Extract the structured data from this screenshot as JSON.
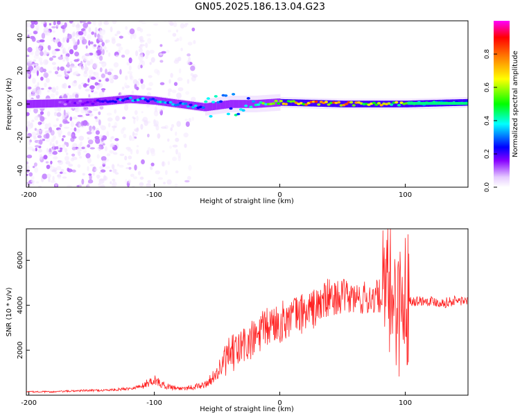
{
  "title": "GN05.2025.186.13.04.G23",
  "chart_data": [
    {
      "type": "heatmap",
      "xlabel": "Height of straight line (km)",
      "ylabel": "Frequency (Hz)",
      "xlim": [
        -202,
        150
      ],
      "ylim": [
        -50,
        50
      ],
      "xticks": [
        -200,
        -100,
        0,
        100
      ],
      "yticks": [
        -40,
        -20,
        0,
        20,
        40
      ],
      "colorbar": {
        "label": "Normalized spectral amplitude",
        "range": [
          0,
          1
        ],
        "ticks": [
          0.0,
          0.2,
          0.4,
          0.6,
          0.8
        ],
        "colormap": [
          "#ffffff",
          "#e6ccff",
          "#8800ff",
          "#0000ff",
          "#00ffff",
          "#00ff00",
          "#ffff00",
          "#ff8000",
          "#ff0000",
          "#ff00ff"
        ]
      },
      "ridge": [
        {
          "x": -200,
          "y": 0,
          "amp": 0.15
        },
        {
          "x": -150,
          "y": 1,
          "amp": 0.25
        },
        {
          "x": -120,
          "y": 3,
          "amp": 0.45
        },
        {
          "x": -100,
          "y": 2,
          "amp": 0.45
        },
        {
          "x": -80,
          "y": 0,
          "amp": 0.4
        },
        {
          "x": -60,
          "y": -2,
          "amp": 0.45
        },
        {
          "x": -40,
          "y": 0,
          "amp": 0.45
        },
        {
          "x": -20,
          "y": 0,
          "amp": 0.5
        },
        {
          "x": 0,
          "y": 1,
          "amp": 0.75
        },
        {
          "x": 50,
          "y": 0,
          "amp": 0.8
        },
        {
          "x": 100,
          "y": 0,
          "amp": 0.6
        },
        {
          "x": 150,
          "y": 1,
          "amp": 0.4
        }
      ]
    },
    {
      "type": "line",
      "xlabel": "Height of straight line (km)",
      "ylabel": "SNR (10 * v/v)",
      "xlim": [
        -202,
        150
      ],
      "ylim": [
        0,
        7400
      ],
      "xticks": [
        -200,
        -100,
        0,
        100
      ],
      "yticks": [
        2000,
        4000,
        6000
      ],
      "color": "#ff2020",
      "series": [
        {
          "x": [
            -200,
            -180,
            -160,
            -140,
            -130,
            -120,
            -110,
            -100,
            -95,
            -90,
            -80,
            -70,
            -60,
            -55,
            -50,
            -45,
            -40,
            -35,
            -30,
            -25,
            -20,
            -15,
            -10,
            -5,
            0,
            5,
            10,
            20,
            30,
            35,
            40,
            50,
            60,
            70,
            80,
            85,
            90,
            95,
            100,
            105,
            110,
            120,
            130,
            140,
            150
          ],
          "values": [
            150,
            150,
            200,
            220,
            250,
            300,
            400,
            700,
            500,
            400,
            300,
            350,
            450,
            700,
            1000,
            1400,
            1800,
            1900,
            2200,
            2300,
            2500,
            2800,
            3000,
            3200,
            3200,
            3400,
            3500,
            3700,
            3900,
            4200,
            4300,
            4400,
            4300,
            4300,
            4400,
            4500,
            4600,
            3800,
            4400,
            4200,
            4200,
            4200,
            4100,
            4200,
            4200
          ]
        }
      ]
    }
  ]
}
